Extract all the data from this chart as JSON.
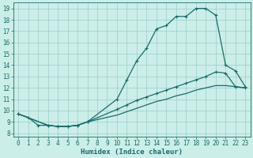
{
  "xlabel": "Humidex (Indice chaleur)",
  "bg_color": "#cceee8",
  "grid_color": "#99cccc",
  "line_color": "#1a6b6b",
  "xlim": [
    -0.5,
    23.5
  ],
  "ylim": [
    7.7,
    19.5
  ],
  "xticks": [
    0,
    1,
    2,
    3,
    4,
    5,
    6,
    7,
    8,
    9,
    10,
    11,
    12,
    13,
    14,
    15,
    16,
    17,
    18,
    19,
    20,
    21,
    22,
    23
  ],
  "yticks": [
    8,
    9,
    10,
    11,
    12,
    13,
    14,
    15,
    16,
    17,
    18,
    19
  ],
  "line1_x": [
    0,
    1,
    2,
    3,
    4,
    5,
    6,
    7,
    10,
    11,
    12,
    13,
    14,
    15,
    16,
    17,
    18,
    19,
    20,
    21,
    22,
    23
  ],
  "line1_y": [
    9.7,
    9.4,
    8.7,
    8.7,
    8.6,
    8.6,
    8.7,
    9.0,
    11.0,
    12.7,
    14.4,
    15.5,
    17.2,
    17.5,
    18.3,
    18.3,
    19.0,
    19.0,
    18.4,
    14.0,
    13.5,
    12.1
  ],
  "line2_x": [
    0,
    3,
    4,
    5,
    6,
    7,
    10,
    11,
    12,
    13,
    14,
    15,
    16,
    17,
    18,
    19,
    20,
    21,
    22,
    23
  ],
  "line2_y": [
    9.7,
    8.7,
    8.6,
    8.6,
    8.7,
    9.0,
    10.1,
    10.5,
    10.9,
    11.2,
    11.5,
    11.8,
    12.1,
    12.4,
    12.7,
    13.0,
    13.4,
    13.3,
    12.1,
    12.0
  ],
  "line3_x": [
    0,
    3,
    4,
    5,
    6,
    7,
    10,
    11,
    12,
    13,
    14,
    15,
    16,
    17,
    18,
    19,
    20,
    21,
    22,
    23
  ],
  "line3_y": [
    9.7,
    8.7,
    8.6,
    8.6,
    8.7,
    9.0,
    9.6,
    9.9,
    10.2,
    10.5,
    10.8,
    11.0,
    11.3,
    11.5,
    11.8,
    12.0,
    12.2,
    12.2,
    12.1,
    12.0
  ],
  "marker": "+",
  "tick_fontsize": 5.5,
  "xlabel_fontsize": 6.5
}
